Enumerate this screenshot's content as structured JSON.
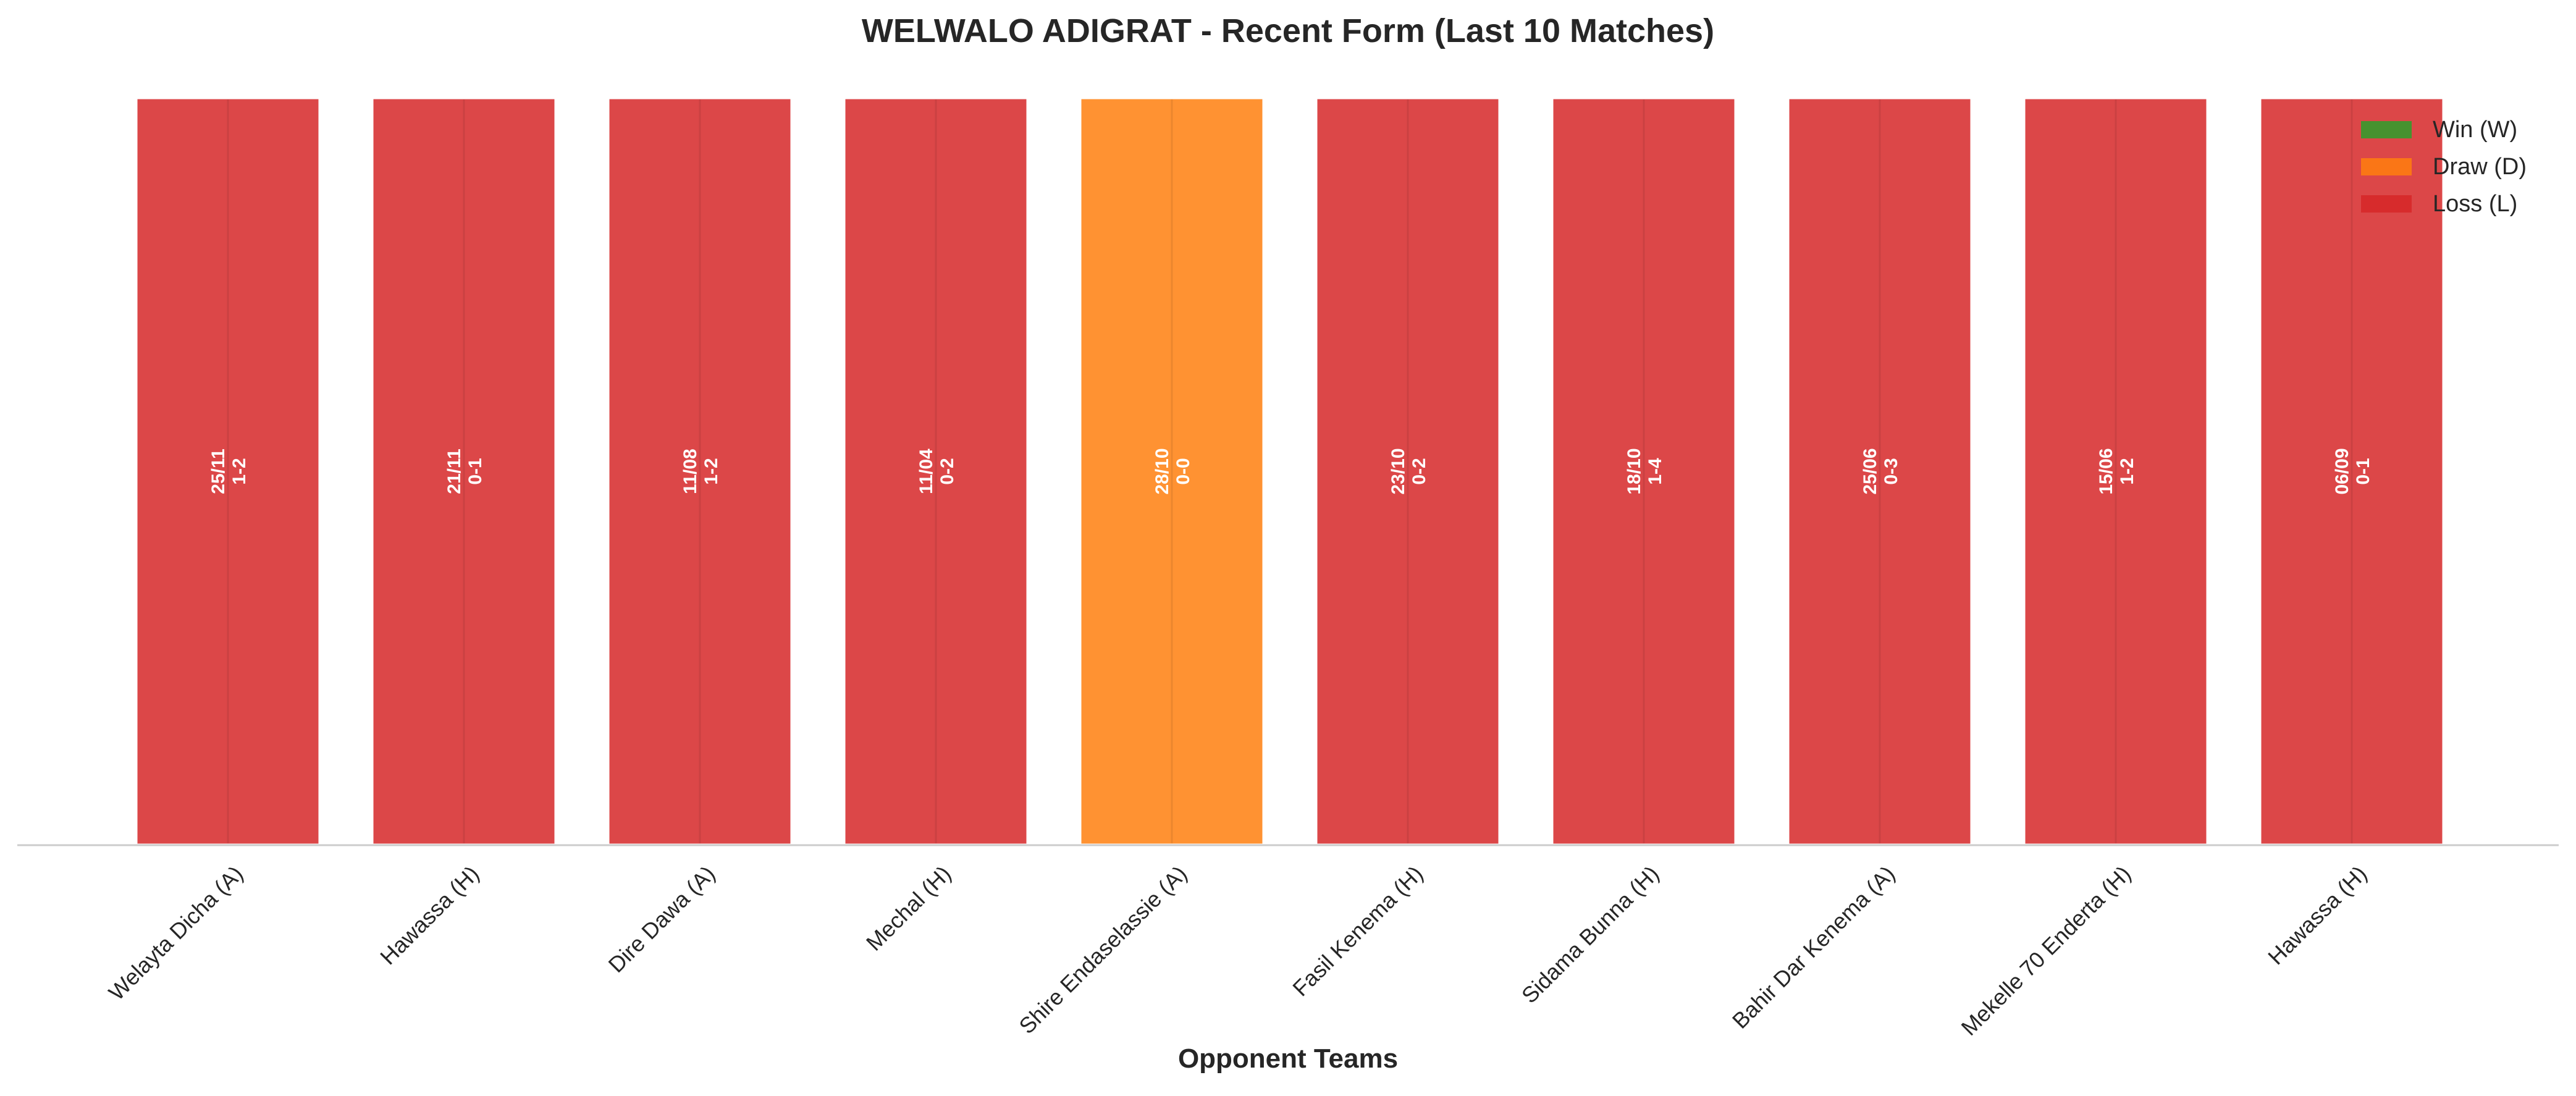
{
  "chart_data": {
    "type": "bar",
    "title": "WELWALO ADIGRAT - Recent Form (Last 10 Matches)",
    "xlabel": "Opponent Teams",
    "ylabel": "",
    "grid": false,
    "legend_position": "top-right",
    "categories": [
      "Welayta Dicha (A)",
      "Hawassa (H)",
      "Dire Dawa (A)",
      "Mechal (H)",
      "Shire Endaselassie (A)",
      "Fasil Kenema (H)",
      "Sidama Bunna (H)",
      "Bahir Dar Kenema (A)",
      "Mekelle 70 Enderta (H)",
      "Hawassa (H)"
    ],
    "values": [
      1,
      1,
      1,
      1,
      1,
      1,
      1,
      1,
      1,
      1
    ],
    "results": [
      "L",
      "L",
      "L",
      "L",
      "D",
      "L",
      "L",
      "L",
      "L",
      "L"
    ],
    "dates": [
      "25/11",
      "21/11",
      "11/08",
      "11/04",
      "28/10",
      "23/10",
      "18/10",
      "25/06",
      "15/06",
      "06/09"
    ],
    "scores": [
      "1-2",
      "0-1",
      "1-2",
      "0-2",
      "0-0",
      "0-2",
      "1-4",
      "0-3",
      "1-2",
      "0-1"
    ],
    "legend": [
      {
        "key": "W",
        "label": "Win (W)",
        "color": "#2ca02c"
      },
      {
        "key": "D",
        "label": "Draw (D)",
        "color": "#ff7f0e"
      },
      {
        "key": "L",
        "label": "Loss (L)",
        "color": "#d62728"
      }
    ]
  }
}
